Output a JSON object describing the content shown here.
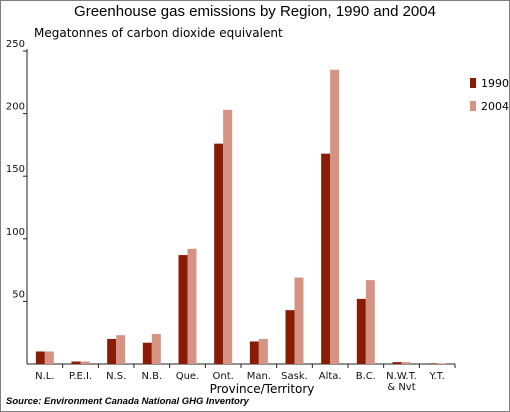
{
  "chart_data": {
    "type": "bar",
    "title": "Greenhouse gas emissions by Region, 1990 and 2004",
    "ylabel": "Megatonnes of carbon dioxide equivalent",
    "xlabel": "Province/Territory",
    "source": "Source: Environment Canada National GHG Inventory",
    "categories": [
      "N.L.",
      "P.E.I.",
      "N.S.",
      "N.B.",
      "Que.",
      "Ont.",
      "Man.",
      "Sask.",
      "Alta.",
      "B.C.",
      "N.W.T.|& Nvt",
      "Y.T."
    ],
    "series": [
      {
        "name": "1990",
        "color": "#8b1c04",
        "values": [
          10,
          2,
          20,
          17,
          87,
          176,
          18,
          43,
          168,
          52,
          1.5,
          0.5
        ]
      },
      {
        "name": "2004",
        "color": "#d49383",
        "values": [
          10,
          2,
          23,
          24,
          92,
          203,
          20,
          69,
          235,
          67,
          1.5,
          0.5
        ]
      }
    ],
    "ylim": [
      0,
      250
    ],
    "yticks": [
      50,
      100,
      150,
      200,
      250
    ],
    "grid": false,
    "legend_position": "right"
  }
}
